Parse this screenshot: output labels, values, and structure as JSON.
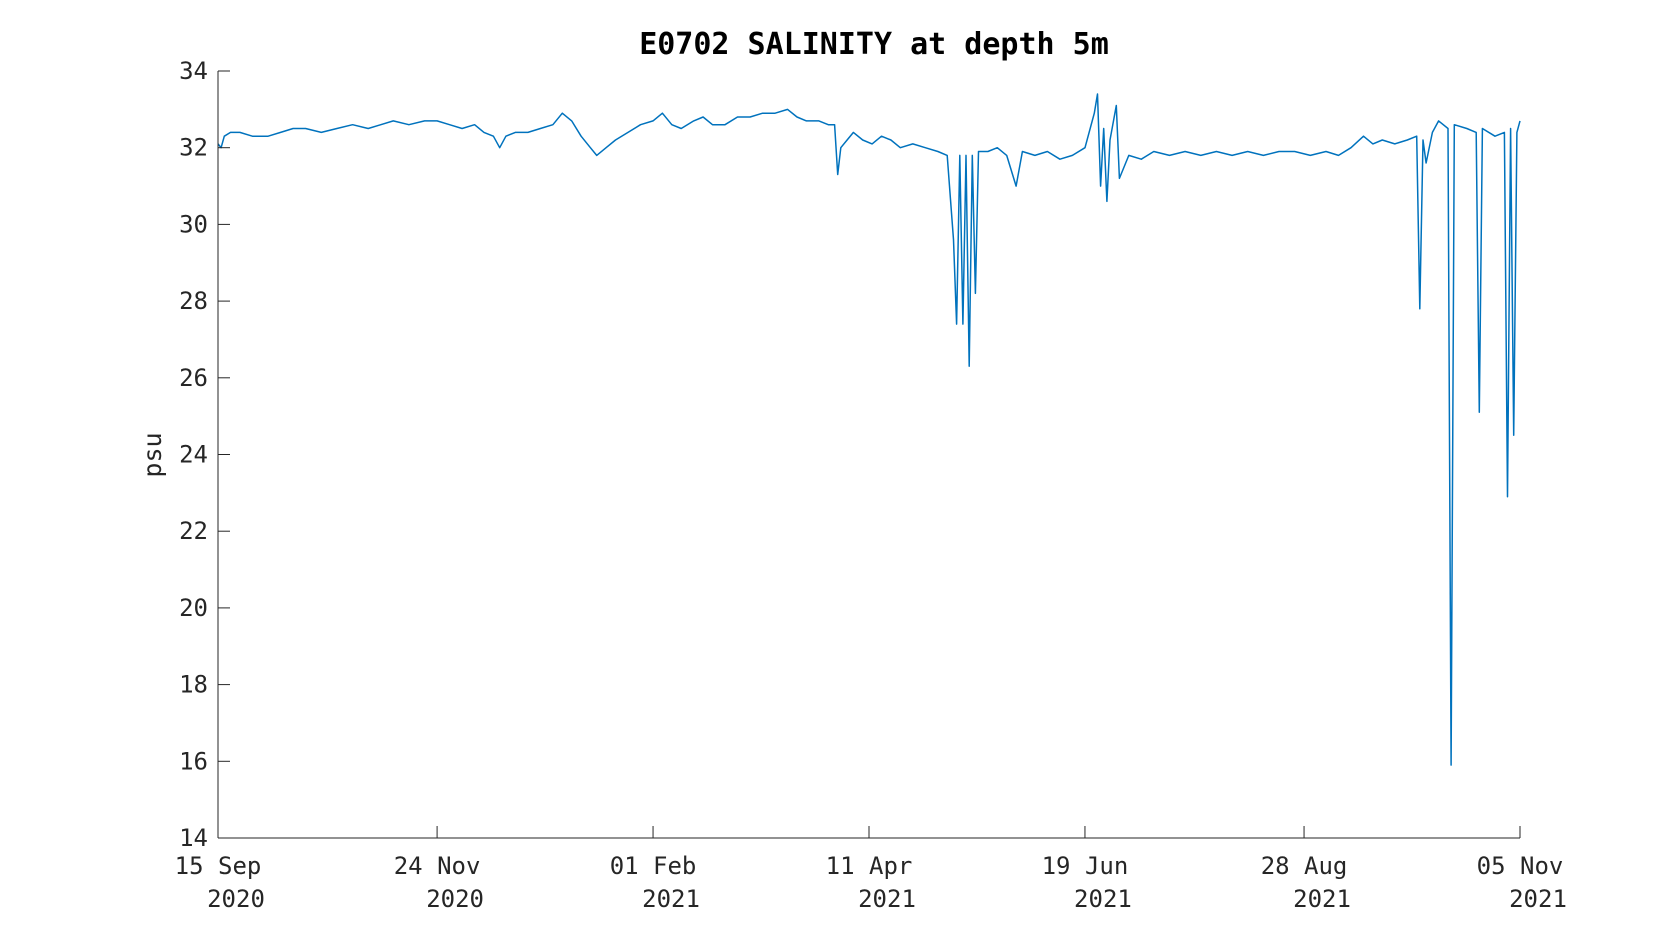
{
  "chart_data": {
    "type": "line",
    "title": "E0702 SALINITY at depth 5m",
    "xlabel": "",
    "ylabel": "psu",
    "ylim": [
      14,
      34
    ],
    "xlim": [
      "2020-09-15",
      "2021-11-05"
    ],
    "y_ticks": [
      14,
      16,
      18,
      20,
      22,
      24,
      26,
      28,
      30,
      32,
      34
    ],
    "x_ticks": [
      {
        "date": "2020-09-15",
        "line1": "15 Sep",
        "line2": "2020"
      },
      {
        "date": "2020-11-24",
        "line1": "24 Nov",
        "line2": "2020"
      },
      {
        "date": "2021-02-01",
        "line1": "01 Feb",
        "line2": "2021"
      },
      {
        "date": "2021-04-11",
        "line1": "11 Apr",
        "line2": "2021"
      },
      {
        "date": "2021-06-19",
        "line1": "19 Jun",
        "line2": "2021"
      },
      {
        "date": "2021-08-28",
        "line1": "28 Aug",
        "line2": "2021"
      },
      {
        "date": "2021-11-05",
        "line1": "05 Nov",
        "line2": "2021"
      }
    ],
    "grid": false,
    "legend": "none",
    "series": [
      {
        "color": "#0072BD",
        "points": [
          [
            "2020-09-15",
            32.1
          ],
          [
            "2020-09-16",
            32.0
          ],
          [
            "2020-09-17",
            32.3
          ],
          [
            "2020-09-19",
            32.4
          ],
          [
            "2020-09-22",
            32.4
          ],
          [
            "2020-09-26",
            32.3
          ],
          [
            "2020-10-01",
            32.3
          ],
          [
            "2020-10-05",
            32.4
          ],
          [
            "2020-10-09",
            32.5
          ],
          [
            "2020-10-13",
            32.5
          ],
          [
            "2020-10-18",
            32.4
          ],
          [
            "2020-10-23",
            32.5
          ],
          [
            "2020-10-28",
            32.6
          ],
          [
            "2020-11-02",
            32.5
          ],
          [
            "2020-11-06",
            32.6
          ],
          [
            "2020-11-10",
            32.7
          ],
          [
            "2020-11-15",
            32.6
          ],
          [
            "2020-11-20",
            32.7
          ],
          [
            "2020-11-24",
            32.7
          ],
          [
            "2020-11-28",
            32.6
          ],
          [
            "2020-12-02",
            32.5
          ],
          [
            "2020-12-06",
            32.6
          ],
          [
            "2020-12-09",
            32.4
          ],
          [
            "2020-12-12",
            32.3
          ],
          [
            "2020-12-14",
            32.0
          ],
          [
            "2020-12-16",
            32.3
          ],
          [
            "2020-12-19",
            32.4
          ],
          [
            "2020-12-23",
            32.4
          ],
          [
            "2020-12-27",
            32.5
          ],
          [
            "2020-12-31",
            32.6
          ],
          [
            "2021-01-03",
            32.9
          ],
          [
            "2021-01-06",
            32.7
          ],
          [
            "2021-01-09",
            32.3
          ],
          [
            "2021-01-12",
            32.0
          ],
          [
            "2021-01-14",
            31.8
          ],
          [
            "2021-01-17",
            32.0
          ],
          [
            "2021-01-20",
            32.2
          ],
          [
            "2021-01-24",
            32.4
          ],
          [
            "2021-01-28",
            32.6
          ],
          [
            "2021-02-01",
            32.7
          ],
          [
            "2021-02-04",
            32.9
          ],
          [
            "2021-02-07",
            32.6
          ],
          [
            "2021-02-10",
            32.5
          ],
          [
            "2021-02-14",
            32.7
          ],
          [
            "2021-02-17",
            32.8
          ],
          [
            "2021-02-20",
            32.6
          ],
          [
            "2021-02-24",
            32.6
          ],
          [
            "2021-02-28",
            32.8
          ],
          [
            "2021-03-04",
            32.8
          ],
          [
            "2021-03-08",
            32.9
          ],
          [
            "2021-03-12",
            32.9
          ],
          [
            "2021-03-16",
            33.0
          ],
          [
            "2021-03-19",
            32.8
          ],
          [
            "2021-03-22",
            32.7
          ],
          [
            "2021-03-26",
            32.7
          ],
          [
            "2021-03-29",
            32.6
          ],
          [
            "2021-03-31",
            32.6
          ],
          [
            "2021-04-01",
            31.3
          ],
          [
            "2021-04-02",
            32.0
          ],
          [
            "2021-04-04",
            32.2
          ],
          [
            "2021-04-06",
            32.4
          ],
          [
            "2021-04-09",
            32.2
          ],
          [
            "2021-04-12",
            32.1
          ],
          [
            "2021-04-15",
            32.3
          ],
          [
            "2021-04-18",
            32.2
          ],
          [
            "2021-04-21",
            32.0
          ],
          [
            "2021-04-25",
            32.1
          ],
          [
            "2021-04-29",
            32.0
          ],
          [
            "2021-05-03",
            31.9
          ],
          [
            "2021-05-06",
            31.8
          ],
          [
            "2021-05-08",
            29.6
          ],
          [
            "2021-05-09",
            27.4
          ],
          [
            "2021-05-10",
            31.8
          ],
          [
            "2021-05-11",
            27.4
          ],
          [
            "2021-05-12",
            31.8
          ],
          [
            "2021-05-13",
            26.3
          ],
          [
            "2021-05-14",
            31.8
          ],
          [
            "2021-05-15",
            28.2
          ],
          [
            "2021-05-16",
            31.9
          ],
          [
            "2021-05-19",
            31.9
          ],
          [
            "2021-05-22",
            32.0
          ],
          [
            "2021-05-25",
            31.8
          ],
          [
            "2021-05-28",
            31.0
          ],
          [
            "2021-05-30",
            31.9
          ],
          [
            "2021-06-03",
            31.8
          ],
          [
            "2021-06-07",
            31.9
          ],
          [
            "2021-06-11",
            31.7
          ],
          [
            "2021-06-15",
            31.8
          ],
          [
            "2021-06-19",
            32.0
          ],
          [
            "2021-06-22",
            32.9
          ],
          [
            "2021-06-23",
            33.4
          ],
          [
            "2021-06-24",
            31.0
          ],
          [
            "2021-06-25",
            32.5
          ],
          [
            "2021-06-26",
            30.6
          ],
          [
            "2021-06-27",
            32.2
          ],
          [
            "2021-06-29",
            33.1
          ],
          [
            "2021-06-30",
            31.2
          ],
          [
            "2021-07-03",
            31.8
          ],
          [
            "2021-07-07",
            31.7
          ],
          [
            "2021-07-11",
            31.9
          ],
          [
            "2021-07-16",
            31.8
          ],
          [
            "2021-07-21",
            31.9
          ],
          [
            "2021-07-26",
            31.8
          ],
          [
            "2021-07-31",
            31.9
          ],
          [
            "2021-08-05",
            31.8
          ],
          [
            "2021-08-10",
            31.9
          ],
          [
            "2021-08-15",
            31.8
          ],
          [
            "2021-08-20",
            31.9
          ],
          [
            "2021-08-25",
            31.9
          ],
          [
            "2021-08-30",
            31.8
          ],
          [
            "2021-09-04",
            31.9
          ],
          [
            "2021-09-08",
            31.8
          ],
          [
            "2021-09-12",
            32.0
          ],
          [
            "2021-09-16",
            32.3
          ],
          [
            "2021-09-19",
            32.1
          ],
          [
            "2021-09-22",
            32.2
          ],
          [
            "2021-09-26",
            32.1
          ],
          [
            "2021-09-30",
            32.2
          ],
          [
            "2021-10-03",
            32.3
          ],
          [
            "2021-10-04",
            27.8
          ],
          [
            "2021-10-05",
            32.2
          ],
          [
            "2021-10-06",
            31.6
          ],
          [
            "2021-10-08",
            32.4
          ],
          [
            "2021-10-10",
            32.7
          ],
          [
            "2021-10-13",
            32.5
          ],
          [
            "2021-10-14",
            15.9
          ],
          [
            "2021-10-15",
            32.6
          ],
          [
            "2021-10-19",
            32.5
          ],
          [
            "2021-10-22",
            32.4
          ],
          [
            "2021-10-23",
            25.1
          ],
          [
            "2021-10-24",
            32.5
          ],
          [
            "2021-10-28",
            32.3
          ],
          [
            "2021-10-31",
            32.4
          ],
          [
            "2021-11-01",
            22.9
          ],
          [
            "2021-11-02",
            32.5
          ],
          [
            "2021-11-03",
            24.5
          ],
          [
            "2021-11-04",
            32.4
          ],
          [
            "2021-11-05",
            32.7
          ]
        ]
      }
    ]
  }
}
